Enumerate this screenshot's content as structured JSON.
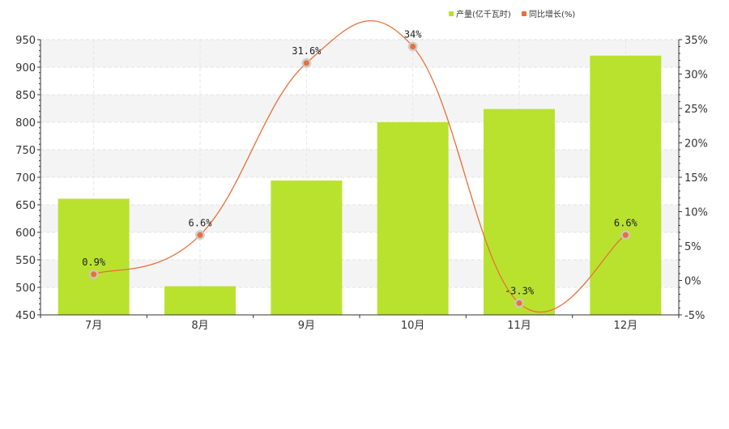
{
  "chart_data": {
    "type": "bar",
    "categories": [
      "7月",
      "8月",
      "9月",
      "10月",
      "11月",
      "12月"
    ],
    "series": [
      {
        "name": "产量(亿千瓦时)",
        "type": "bar",
        "axis": "left",
        "color": "#b9e22e",
        "values": [
          661,
          502,
          694,
          800,
          824,
          921
        ]
      },
      {
        "name": "同比增长(%)",
        "type": "line",
        "axis": "right",
        "color": "#e8703a",
        "values": [
          0.9,
          6.6,
          31.6,
          34,
          -3.3,
          6.6
        ],
        "labels": [
          "0.9%",
          "6.6%",
          "31.6%",
          "34%",
          "-3.3%",
          "6.6%"
        ]
      }
    ],
    "y_left": {
      "min": 450,
      "max": 950,
      "step": 50,
      "ticks": [
        "450",
        "500",
        "550",
        "600",
        "650",
        "700",
        "750",
        "800",
        "850",
        "900",
        "950"
      ]
    },
    "y_right": {
      "min": -5,
      "max": 35,
      "step": 5,
      "ticks": [
        "-5%",
        "0%",
        "5%",
        "10%",
        "15%",
        "20%",
        "25%",
        "30%",
        "35%"
      ]
    },
    "legend": {
      "position": "top-right",
      "items": [
        "产量(亿千瓦时)",
        "同比增长(%)"
      ]
    },
    "grid": true
  }
}
